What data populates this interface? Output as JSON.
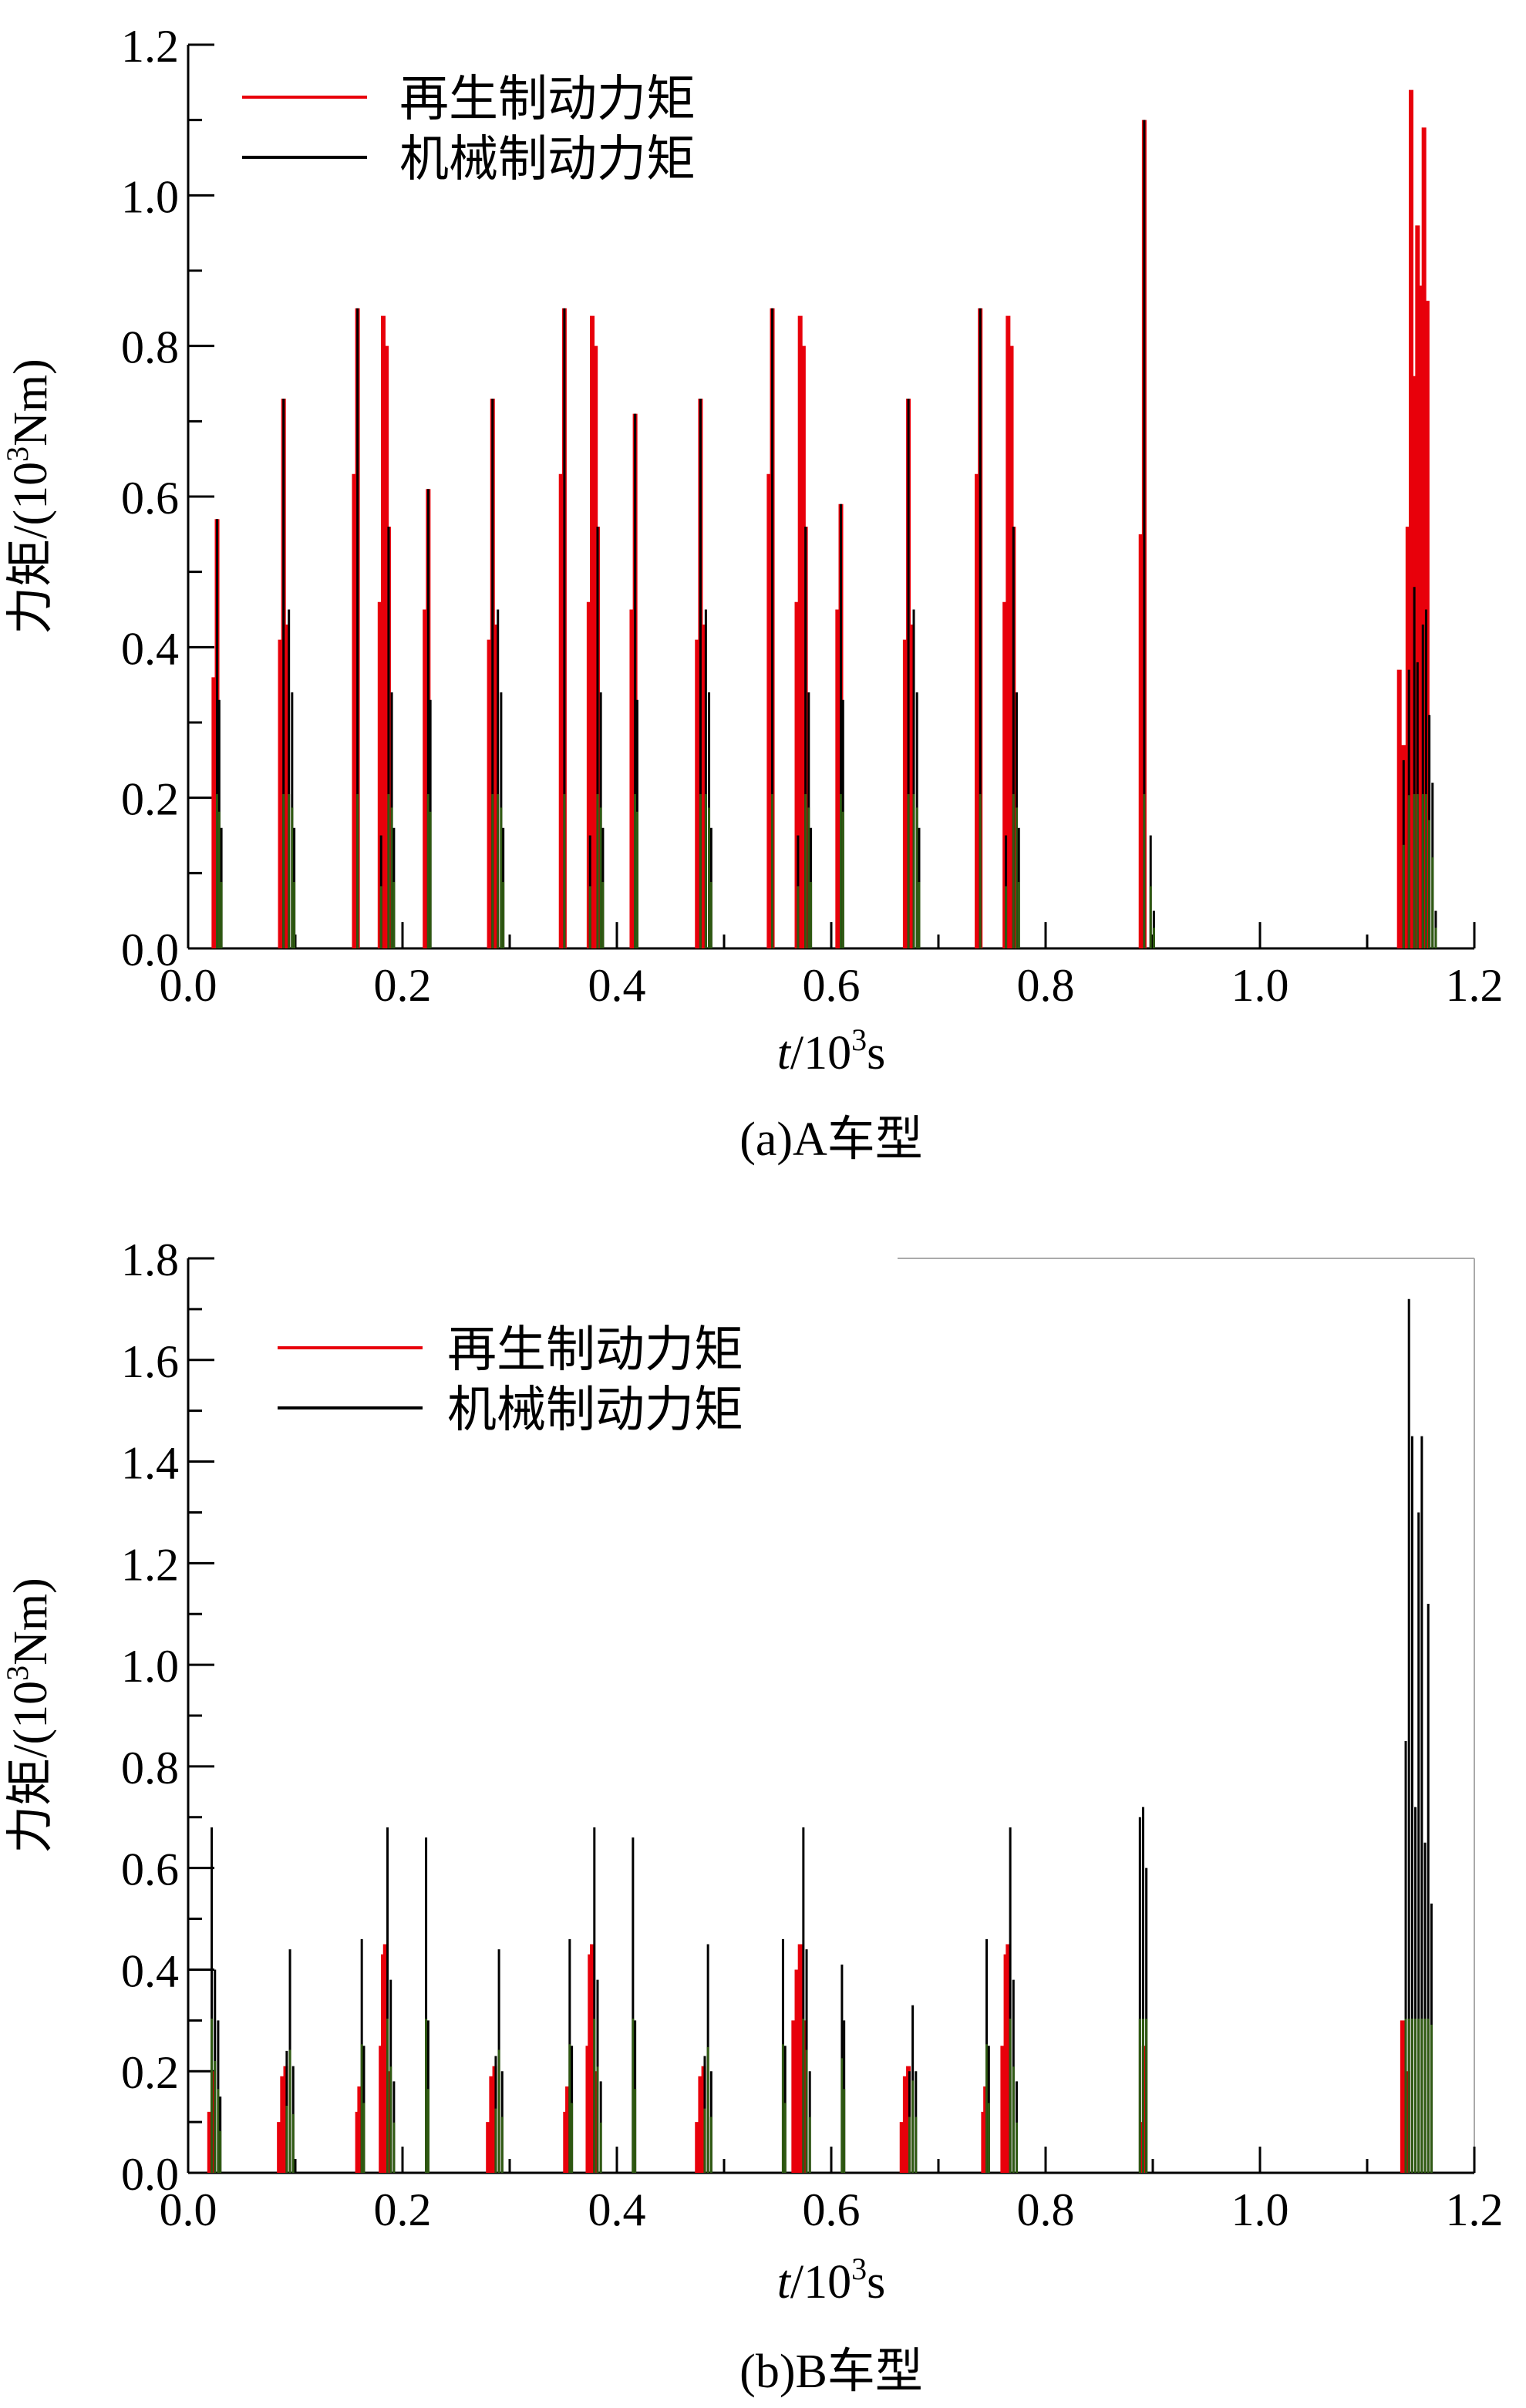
{
  "chart_data": [
    {
      "type": "line",
      "caption": "(a)A车型",
      "ylabel": "力矩/(10³Nm)",
      "ylabel_parts": [
        "力矩/(10",
        "3",
        "Nm)"
      ],
      "xlabel": "t/10³s",
      "xlabel_parts": [
        "t",
        "/10",
        "3",
        "s"
      ],
      "xlim": [
        0.0,
        1.2
      ],
      "ylim": [
        0.0,
        1.2
      ],
      "xticks": [
        "0.0",
        "0.2",
        "0.4",
        "0.6",
        "0.8",
        "1.0",
        "1.2"
      ],
      "yticks": [
        "0.0",
        "0.2",
        "0.4",
        "0.6",
        "0.8",
        "1.0",
        "1.2"
      ],
      "legend_position": "top-left",
      "legend": [
        "再生制动力矩",
        "机械制动力矩"
      ],
      "series": [
        {
          "name": "再生制动力矩",
          "color": "#e8000b",
          "x": [
            0.024,
            0.027,
            0.086,
            0.089,
            0.092,
            0.155,
            0.158,
            0.179,
            0.182,
            0.185,
            0.187,
            0.221,
            0.224,
            0.281,
            0.284,
            0.287,
            0.348,
            0.351,
            0.374,
            0.377,
            0.38,
            0.382,
            0.414,
            0.417,
            0.475,
            0.478,
            0.481,
            0.542,
            0.545,
            0.568,
            0.571,
            0.574,
            0.576,
            0.606,
            0.609,
            0.669,
            0.672,
            0.675,
            0.736,
            0.739,
            0.762,
            0.765,
            0.768,
            0.77,
            0.889,
            0.892,
            1.13,
            1.134,
            1.138,
            1.141,
            1.144,
            1.147,
            1.15,
            1.153,
            1.156
          ],
          "values": [
            0.36,
            0.57,
            0.41,
            0.73,
            0.43,
            0.63,
            0.85,
            0.46,
            0.84,
            0.8,
            0.56,
            0.45,
            0.61,
            0.41,
            0.73,
            0.43,
            0.63,
            0.85,
            0.46,
            0.84,
            0.8,
            0.56,
            0.45,
            0.71,
            0.41,
            0.73,
            0.43,
            0.63,
            0.85,
            0.46,
            0.84,
            0.8,
            0.56,
            0.45,
            0.59,
            0.41,
            0.73,
            0.43,
            0.63,
            0.85,
            0.46,
            0.84,
            0.8,
            0.56,
            0.55,
            1.1,
            0.37,
            0.27,
            0.56,
            1.14,
            0.76,
            0.96,
            0.88,
            1.09,
            0.86
          ]
        },
        {
          "name": "机械制动力矩",
          "color": "#000000",
          "x": [
            0.027,
            0.029,
            0.031,
            0.089,
            0.094,
            0.097,
            0.099,
            0.158,
            0.18,
            0.187,
            0.19,
            0.192,
            0.224,
            0.226,
            0.284,
            0.289,
            0.292,
            0.294,
            0.351,
            0.375,
            0.382,
            0.385,
            0.387,
            0.417,
            0.419,
            0.478,
            0.483,
            0.486,
            0.488,
            0.545,
            0.569,
            0.576,
            0.579,
            0.581,
            0.609,
            0.611,
            0.672,
            0.677,
            0.68,
            0.682,
            0.739,
            0.763,
            0.77,
            0.773,
            0.775,
            0.892,
            0.898,
            0.901,
            1.134,
            1.139,
            1.144,
            1.147,
            1.152,
            1.155,
            1.158,
            1.161,
            1.164
          ],
          "values": [
            0.57,
            0.33,
            0.16,
            0.73,
            0.45,
            0.34,
            0.16,
            0.85,
            0.15,
            0.56,
            0.34,
            0.16,
            0.61,
            0.33,
            0.73,
            0.45,
            0.34,
            0.16,
            0.85,
            0.15,
            0.56,
            0.34,
            0.16,
            0.71,
            0.33,
            0.73,
            0.45,
            0.34,
            0.16,
            0.85,
            0.15,
            0.56,
            0.34,
            0.16,
            0.59,
            0.33,
            0.73,
            0.45,
            0.34,
            0.16,
            0.85,
            0.15,
            0.56,
            0.34,
            0.16,
            1.1,
            0.15,
            0.05,
            0.25,
            0.37,
            0.48,
            0.38,
            0.43,
            0.45,
            0.31,
            0.22,
            0.05
          ]
        }
      ]
    },
    {
      "type": "line",
      "caption": "(b)B车型",
      "ylabel": "力矩/(10³Nm)",
      "ylabel_parts": [
        "力矩/(10",
        "3",
        "Nm)"
      ],
      "xlabel": "t/10³s",
      "xlabel_parts": [
        "t",
        "/10",
        "3",
        "s"
      ],
      "xlim": [
        0.0,
        1.2
      ],
      "ylim": [
        0.0,
        1.8
      ],
      "xticks": [
        "0.0",
        "0.2",
        "0.4",
        "0.6",
        "0.8",
        "1.0",
        "1.2"
      ],
      "yticks": [
        "0.0",
        "0.2",
        "0.4",
        "0.6",
        "0.8",
        "1.0",
        "1.2",
        "1.4",
        "1.6",
        "1.8"
      ],
      "legend_position": "top-left",
      "legend": [
        "再生制动力矩",
        "机械制动力矩"
      ],
      "series": [
        {
          "name": "再生制动力矩",
          "color": "#e8000b",
          "x": [
            0.02,
            0.023,
            0.085,
            0.088,
            0.091,
            0.158,
            0.16,
            0.18,
            0.182,
            0.184,
            0.186,
            0.28,
            0.283,
            0.286,
            0.352,
            0.354,
            0.373,
            0.375,
            0.377,
            0.379,
            0.475,
            0.478,
            0.481,
            0.565,
            0.568,
            0.571,
            0.574,
            0.666,
            0.669,
            0.672,
            0.742,
            0.744,
            0.76,
            0.763,
            0.765,
            0.89,
            0.892,
            1.133,
            1.138
          ],
          "values": [
            0.12,
            0.2,
            0.1,
            0.19,
            0.21,
            0.12,
            0.17,
            0.25,
            0.43,
            0.45,
            0.2,
            0.1,
            0.19,
            0.21,
            0.12,
            0.17,
            0.25,
            0.43,
            0.45,
            0.2,
            0.1,
            0.19,
            0.21,
            0.3,
            0.4,
            0.45,
            0.3,
            0.1,
            0.19,
            0.21,
            0.12,
            0.17,
            0.25,
            0.43,
            0.45,
            0.1,
            0.25,
            0.3,
            0.2
          ]
        },
        {
          "name": "机械制动力矩",
          "color": "#000000",
          "x": [
            0.022,
            0.025,
            0.028,
            0.03,
            0.092,
            0.095,
            0.098,
            0.162,
            0.164,
            0.186,
            0.189,
            0.192,
            0.222,
            0.224,
            0.287,
            0.29,
            0.293,
            0.356,
            0.358,
            0.379,
            0.382,
            0.385,
            0.415,
            0.417,
            0.482,
            0.485,
            0.488,
            0.555,
            0.557,
            0.574,
            0.577,
            0.58,
            0.61,
            0.612,
            0.673,
            0.676,
            0.679,
            0.745,
            0.747,
            0.767,
            0.77,
            0.773,
            0.888,
            0.891,
            0.894,
            1.136,
            1.139,
            1.142,
            1.145,
            1.148,
            1.151,
            1.154,
            1.157,
            1.16
          ],
          "values": [
            0.68,
            0.4,
            0.3,
            0.15,
            0.24,
            0.44,
            0.21,
            0.46,
            0.25,
            0.68,
            0.38,
            0.18,
            0.66,
            0.3,
            0.23,
            0.44,
            0.2,
            0.46,
            0.25,
            0.68,
            0.38,
            0.18,
            0.66,
            0.3,
            0.23,
            0.45,
            0.2,
            0.46,
            0.25,
            0.68,
            0.44,
            0.2,
            0.41,
            0.3,
            0.2,
            0.33,
            0.2,
            0.46,
            0.25,
            0.68,
            0.38,
            0.18,
            0.7,
            0.72,
            0.6,
            0.85,
            1.72,
            1.45,
            0.72,
            1.3,
            1.45,
            0.65,
            1.12,
            0.53
          ]
        }
      ]
    }
  ]
}
